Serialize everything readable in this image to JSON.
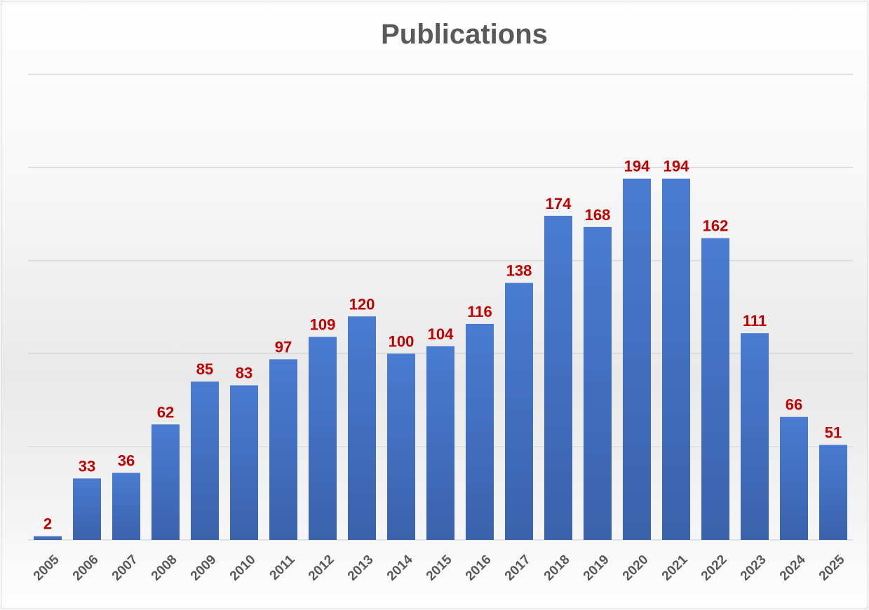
{
  "chart_data": {
    "type": "bar",
    "title": "Publications",
    "xlabel": "",
    "ylabel": "",
    "categories": [
      "2005",
      "2006",
      "2007",
      "2008",
      "2009",
      "2010",
      "2011",
      "2012",
      "2013",
      "2014",
      "2015",
      "2016",
      "2017",
      "2018",
      "2019",
      "2020",
      "2021",
      "2022",
      "2023",
      "2024",
      "2025"
    ],
    "values": [
      2,
      33,
      36,
      62,
      85,
      83,
      97,
      109,
      120,
      100,
      104,
      116,
      138,
      174,
      168,
      194,
      194,
      162,
      111,
      66,
      51
    ],
    "ylim": [
      0,
      250
    ],
    "gridlines": [
      0,
      50,
      100,
      150,
      200,
      250
    ],
    "grid": true,
    "y_axis_labels_shown": false,
    "legend": "none",
    "colors": {
      "bar": "#4472c4",
      "data_label": "#c00000",
      "title": "#595959",
      "tick_label": "#595959"
    }
  }
}
